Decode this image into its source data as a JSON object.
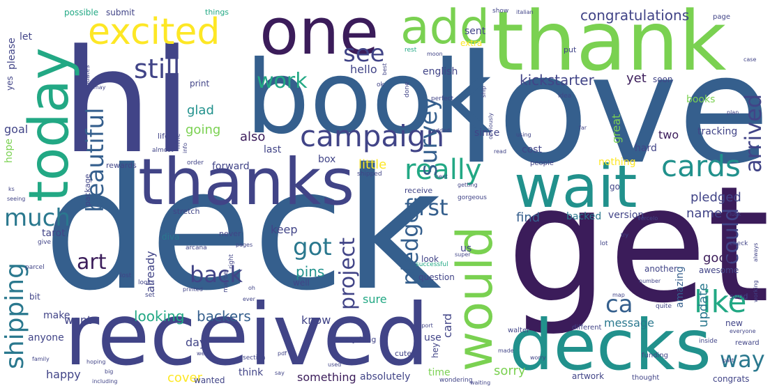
{
  "palette": {
    "purple": "#3b1c5a",
    "indigo": "#414487",
    "blue": "#355f8d",
    "steel": "#2a788e",
    "teal": "#21918c",
    "green": "#22a884",
    "lime": "#7ad151",
    "yellow": "#fde725"
  },
  "words": [
    {
      "text": "deck",
      "color": "#355f8d",
      "rot": 0
    },
    {
      "text": "get",
      "color": "#3b1c5a",
      "rot": 0
    },
    {
      "text": "love",
      "color": "#355f8d",
      "rot": 0
    },
    {
      "text": "hi",
      "color": "#414487",
      "rot": 0
    },
    {
      "text": "book",
      "color": "#355f8d",
      "rot": 0
    },
    {
      "text": "thank",
      "color": "#7ad151",
      "rot": 0
    },
    {
      "text": "received",
      "color": "#414487",
      "rot": 0
    },
    {
      "text": "thanks",
      "color": "#414487",
      "rot": 0
    },
    {
      "text": "decks",
      "color": "#21918c",
      "rot": 0
    },
    {
      "text": "wait",
      "color": "#21918c",
      "rot": 0
    },
    {
      "text": "one",
      "color": "#3b1c5a",
      "rot": 0
    },
    {
      "text": "today",
      "color": "#22a884",
      "rot": -90
    },
    {
      "text": "would",
      "color": "#7ad151",
      "rot": -90
    },
    {
      "text": "add",
      "color": "#7ad151",
      "rot": 0
    },
    {
      "text": "excited",
      "color": "#fde725",
      "rot": 0
    },
    {
      "text": "campaign",
      "color": "#414487",
      "rot": 0
    },
    {
      "text": "cards",
      "color": "#21918c",
      "rot": 0
    },
    {
      "text": "really",
      "color": "#22a884",
      "rot": 0
    },
    {
      "text": "like",
      "color": "#22a884",
      "rot": 0
    },
    {
      "text": "still",
      "color": "#414487",
      "rot": 0
    },
    {
      "text": "beautiful",
      "color": "#355f8d",
      "rot": -90
    },
    {
      "text": "shipping",
      "color": "#2a788e",
      "rot": -90
    },
    {
      "text": "much",
      "color": "#2a788e",
      "rot": 0
    },
    {
      "text": "survey",
      "color": "#355f8d",
      "rot": -90
    },
    {
      "text": "see",
      "color": "#414487",
      "rot": 0
    },
    {
      "text": "pledge",
      "color": "#355f8d",
      "rot": -90
    },
    {
      "text": "project",
      "color": "#414487",
      "rot": -90
    },
    {
      "text": "first",
      "color": "#355f8d",
      "rot": 0
    },
    {
      "text": "back",
      "color": "#414487",
      "rot": 0
    },
    {
      "text": "got",
      "color": "#2a788e",
      "rot": 0
    },
    {
      "text": "arrived",
      "color": "#414487",
      "rot": -90
    },
    {
      "text": "could",
      "color": "#414487",
      "rot": -90
    },
    {
      "text": "way",
      "color": "#2a788e",
      "rot": 0
    },
    {
      "text": "ca",
      "color": "#355f8d",
      "rot": 0
    },
    {
      "text": "work",
      "color": "#22a884",
      "rot": 0
    },
    {
      "text": "art",
      "color": "#3b1c5a",
      "rot": 0
    },
    {
      "text": "kickstarter",
      "color": "#414487",
      "rot": 0
    },
    {
      "text": "congratulations",
      "color": "#414487",
      "rot": 0
    },
    {
      "text": "pledged",
      "color": "#414487",
      "rot": 0
    },
    {
      "text": "good",
      "color": "#3b1c5a",
      "rot": 0
    },
    {
      "text": "looking",
      "color": "#22a884",
      "rot": 0
    },
    {
      "text": "backers",
      "color": "#355f8d",
      "rot": 0
    },
    {
      "text": "cover",
      "color": "#fde725",
      "rot": 0
    },
    {
      "text": "sorry",
      "color": "#7ad151",
      "rot": 0
    },
    {
      "text": "update",
      "color": "#2a788e",
      "rot": -90
    },
    {
      "text": "name",
      "color": "#414487",
      "rot": 0
    },
    {
      "text": "pins",
      "color": "#21918c",
      "rot": 0
    },
    {
      "text": "going",
      "color": "#7ad151",
      "rot": 0
    },
    {
      "text": "glad",
      "color": "#21918c",
      "rot": 0
    },
    {
      "text": "little",
      "color": "#fde725",
      "rot": 0
    },
    {
      "text": "also",
      "color": "#3b1c5a",
      "rot": 0
    },
    {
      "text": "forward",
      "color": "#414487",
      "rot": 0
    },
    {
      "text": "hello",
      "color": "#414487",
      "rot": 0
    },
    {
      "text": "yet",
      "color": "#3b1c5a",
      "rot": 0
    },
    {
      "text": "books",
      "color": "#7ad151",
      "rot": 0
    },
    {
      "text": "great",
      "color": "#7ad151",
      "rot": -90
    },
    {
      "text": "find",
      "color": "#355f8d",
      "rot": 0
    },
    {
      "text": "keep",
      "color": "#414487",
      "rot": 0
    },
    {
      "text": "day",
      "color": "#414487",
      "rot": 0
    },
    {
      "text": "want",
      "color": "#414487",
      "rot": 0
    },
    {
      "text": "happy",
      "color": "#414487",
      "rot": 0
    },
    {
      "text": "know",
      "color": "#414487",
      "rot": 0
    },
    {
      "text": "sure",
      "color": "#22a884",
      "rot": 0
    },
    {
      "text": "amazing",
      "color": "#355f8d",
      "rot": -90
    },
    {
      "text": "message",
      "color": "#2a788e",
      "rot": 0
    },
    {
      "text": "already",
      "color": "#414487",
      "rot": -90
    },
    {
      "text": "goal",
      "color": "#414487",
      "rot": 0
    },
    {
      "text": "hope",
      "color": "#7ad151",
      "rot": -90
    },
    {
      "text": "tracking",
      "color": "#414487",
      "rot": 0
    },
    {
      "text": "two",
      "color": "#3b1c5a",
      "rot": 0
    },
    {
      "text": "hard",
      "color": "#414487",
      "rot": 0
    },
    {
      "text": "version",
      "color": "#414487",
      "rot": 0
    },
    {
      "text": "backed",
      "color": "#2a788e",
      "rot": 0
    },
    {
      "text": "card",
      "color": "#414487",
      "rot": -90
    },
    {
      "text": "something",
      "color": "#3b1c5a",
      "rot": 0
    },
    {
      "text": "absolutely",
      "color": "#414487",
      "rot": 0
    },
    {
      "text": "time",
      "color": "#7ad151",
      "rot": 0
    },
    {
      "text": "use",
      "color": "#414487",
      "rot": 0
    },
    {
      "text": "us",
      "color": "#414487",
      "rot": 0
    },
    {
      "text": "look",
      "color": "#414487",
      "rot": 0
    },
    {
      "text": "make",
      "color": "#414487",
      "rot": 0
    },
    {
      "text": "anyone",
      "color": "#414487",
      "rot": 0
    },
    {
      "text": "think",
      "color": "#414487",
      "rot": 0
    },
    {
      "text": "wanted",
      "color": "#414487",
      "rot": 0
    },
    {
      "text": "box",
      "color": "#414487",
      "rot": 0
    },
    {
      "text": "last",
      "color": "#414487",
      "rot": 0
    },
    {
      "text": "since",
      "color": "#414487",
      "rot": 0
    },
    {
      "text": "cost",
      "color": "#414487",
      "rot": 0
    },
    {
      "text": "nothing",
      "color": "#fde725",
      "rot": 0
    },
    {
      "text": "yes",
      "color": "#414487",
      "rot": -90
    },
    {
      "text": "please",
      "color": "#414487",
      "rot": -90
    },
    {
      "text": "let",
      "color": "#414487",
      "rot": 0
    },
    {
      "text": "english",
      "color": "#414487",
      "rot": 0
    },
    {
      "text": "sent",
      "color": "#414487",
      "rot": 0
    },
    {
      "text": "soon",
      "color": "#414487",
      "rot": 0
    },
    {
      "text": "possible",
      "color": "#22a884",
      "rot": 0
    },
    {
      "text": "submit",
      "color": "#414487",
      "rot": 0
    },
    {
      "text": "things",
      "color": "#22a884",
      "rot": 0
    },
    {
      "text": "show",
      "color": "#414487",
      "rot": 0
    },
    {
      "text": "italian",
      "color": "#414487",
      "rot": 0
    },
    {
      "text": "page",
      "color": "#414487",
      "rot": 0
    },
    {
      "text": "extra",
      "color": "#fde725",
      "rot": 0
    },
    {
      "text": "rest",
      "color": "#22a884",
      "rot": 0
    },
    {
      "text": "put",
      "color": "#414487",
      "rot": 0
    },
    {
      "text": "case",
      "color": "#414487",
      "rot": 0
    },
    {
      "text": "print",
      "color": "#414487",
      "rot": 0
    },
    {
      "text": "life",
      "color": "#414487",
      "rot": 0
    },
    {
      "text": "mine",
      "color": "#414487",
      "rot": -90
    },
    {
      "text": "almost",
      "color": "#414487",
      "rot": 0
    },
    {
      "text": "rewards",
      "color": "#414487",
      "rot": 0
    },
    {
      "text": "order",
      "color": "#414487",
      "rot": 0
    },
    {
      "text": "info",
      "color": "#414487",
      "rot": -90
    },
    {
      "text": "package",
      "color": "#414487",
      "rot": -90
    },
    {
      "text": "shipped",
      "color": "#414487",
      "rot": 0
    },
    {
      "text": "receive",
      "color": "#414487",
      "rot": 0
    },
    {
      "text": "next",
      "color": "#414487",
      "rot": 0
    },
    {
      "text": "getting",
      "color": "#414487",
      "rot": 0
    },
    {
      "text": "stretch",
      "color": "#414487",
      "rot": 0
    },
    {
      "text": "never",
      "color": "#414487",
      "rot": 0
    },
    {
      "text": "diva",
      "color": "#2a788e",
      "rot": 0
    },
    {
      "text": "tarot",
      "color": "#414487",
      "rot": 0
    },
    {
      "text": "give",
      "color": "#414487",
      "rot": 0
    },
    {
      "text": "arcana",
      "color": "#414487",
      "rot": 0
    },
    {
      "text": "pages",
      "color": "#414487",
      "rot": 0
    },
    {
      "text": "parcel",
      "color": "#414487",
      "rot": 0
    },
    {
      "text": "lost",
      "color": "#414487",
      "rot": 0
    },
    {
      "text": "right",
      "color": "#414487",
      "rot": -90
    },
    {
      "text": "maybe",
      "color": "#414487",
      "rot": -90
    },
    {
      "text": "looks",
      "color": "#414487",
      "rot": 0
    },
    {
      "text": "printed",
      "color": "#414487",
      "rot": 0
    },
    {
      "text": "set",
      "color": "#414487",
      "rot": 0
    },
    {
      "text": "bit",
      "color": "#414487",
      "rot": 0
    },
    {
      "text": "oh",
      "color": "#414487",
      "rot": 0
    },
    {
      "text": "ever",
      "color": "#414487",
      "rot": 0
    },
    {
      "text": "well",
      "color": "#414487",
      "rot": 0
    },
    {
      "text": "question",
      "color": "#414487",
      "rot": 0
    },
    {
      "text": "successful",
      "color": "#22a884",
      "rot": 0
    },
    {
      "text": "super",
      "color": "#414487",
      "rot": 0
    },
    {
      "text": "awesome",
      "color": "#414487",
      "rot": 0
    },
    {
      "text": "another",
      "color": "#414487",
      "rot": 0
    },
    {
      "text": "number",
      "color": "#414487",
      "rot": 0
    },
    {
      "text": "send",
      "color": "#414487",
      "rot": 0
    },
    {
      "text": "working",
      "color": "#414487",
      "rot": -90
    },
    {
      "text": "check",
      "color": "#414487",
      "rot": 0
    },
    {
      "text": "always",
      "color": "#414487",
      "rot": -90
    },
    {
      "text": "quite",
      "color": "#414487",
      "rot": 0
    },
    {
      "text": "walter",
      "color": "#414487",
      "rot": 0
    },
    {
      "text": "different",
      "color": "#414487",
      "rot": 0
    },
    {
      "text": "inside",
      "color": "#414487",
      "rot": 0
    },
    {
      "text": "new",
      "color": "#414487",
      "rot": 0
    },
    {
      "text": "everyone",
      "color": "#414487",
      "rot": 0
    },
    {
      "text": "reward",
      "color": "#414487",
      "rot": 0
    },
    {
      "text": "funding",
      "color": "#414487",
      "rot": 0
    },
    {
      "text": "part",
      "color": "#414487",
      "rot": 0
    },
    {
      "text": "artwork",
      "color": "#414487",
      "rot": 0
    },
    {
      "text": "thought",
      "color": "#414487",
      "rot": 0
    },
    {
      "text": "congrats",
      "color": "#414487",
      "rot": 0
    },
    {
      "text": "made",
      "color": "#414487",
      "rot": 0
    },
    {
      "text": "worry",
      "color": "#414487",
      "rot": 0
    },
    {
      "text": "hey",
      "color": "#414487",
      "rot": -90
    },
    {
      "text": "cute",
      "color": "#414487",
      "rot": 0
    },
    {
      "text": "used",
      "color": "#414487",
      "rot": 0
    },
    {
      "text": "wondering",
      "color": "#414487",
      "rot": 0
    },
    {
      "text": "waiting",
      "color": "#414487",
      "rot": 0
    },
    {
      "text": "everything",
      "color": "#414487",
      "rot": 0
    },
    {
      "text": "support",
      "color": "#414487",
      "rot": 0
    },
    {
      "text": "pdf",
      "color": "#414487",
      "rot": 0
    },
    {
      "text": "section",
      "color": "#414487",
      "rot": 0
    },
    {
      "text": "went",
      "color": "#414487",
      "rot": 0
    },
    {
      "text": "say",
      "color": "#414487",
      "rot": 0
    },
    {
      "text": "change",
      "color": "#414487",
      "rot": 0
    },
    {
      "text": "hoping",
      "color": "#414487",
      "rot": 0
    },
    {
      "text": "big",
      "color": "#414487",
      "rot": 0
    },
    {
      "text": "including",
      "color": "#414487",
      "rot": 0
    },
    {
      "text": "family",
      "color": "#414487",
      "rot": 0
    },
    {
      "text": "seeing",
      "color": "#414487",
      "rot": 0
    },
    {
      "text": "ks",
      "color": "#414487",
      "rot": 0
    },
    {
      "text": "updates",
      "color": "#414487",
      "rot": -90
    },
    {
      "text": "may",
      "color": "#414487",
      "rot": 0
    },
    {
      "text": "ok",
      "color": "#414487",
      "rot": 0
    },
    {
      "text": "done",
      "color": "#414487",
      "rot": -90
    },
    {
      "text": "perfect",
      "color": "#414487",
      "rot": 0
    },
    {
      "text": "added",
      "color": "#414487",
      "rot": 0
    },
    {
      "text": "obviously",
      "color": "#414487",
      "rot": -90
    },
    {
      "text": "using",
      "color": "#414487",
      "rot": 0
    },
    {
      "text": "read",
      "color": "#414487",
      "rot": 0
    },
    {
      "text": "idea",
      "color": "#414487",
      "rot": 0
    },
    {
      "text": "ship",
      "color": "#414487",
      "rot": -90
    },
    {
      "text": "far",
      "color": "#414487",
      "rot": 0
    },
    {
      "text": "plan",
      "color": "#414487",
      "rot": 0
    },
    {
      "text": "best",
      "color": "#414487",
      "rot": -90
    },
    {
      "text": "moon",
      "color": "#414487",
      "rot": 0
    },
    {
      "text": "gorgeous",
      "color": "#414487",
      "rot": 0
    },
    {
      "text": "map",
      "color": "#414487",
      "rot": 0
    },
    {
      "text": "try",
      "color": "#414487",
      "rot": 0
    },
    {
      "text": "lot",
      "color": "#414487",
      "rot": 0
    },
    {
      "text": "go",
      "color": "#414487",
      "rot": 0
    },
    {
      "text": "people",
      "color": "#414487",
      "rot": 0
    },
    {
      "text": "luck",
      "color": "#414487",
      "rot": 0
    },
    {
      "text": "vercelo",
      "color": "#414487",
      "rot": 0
    }
  ]
}
